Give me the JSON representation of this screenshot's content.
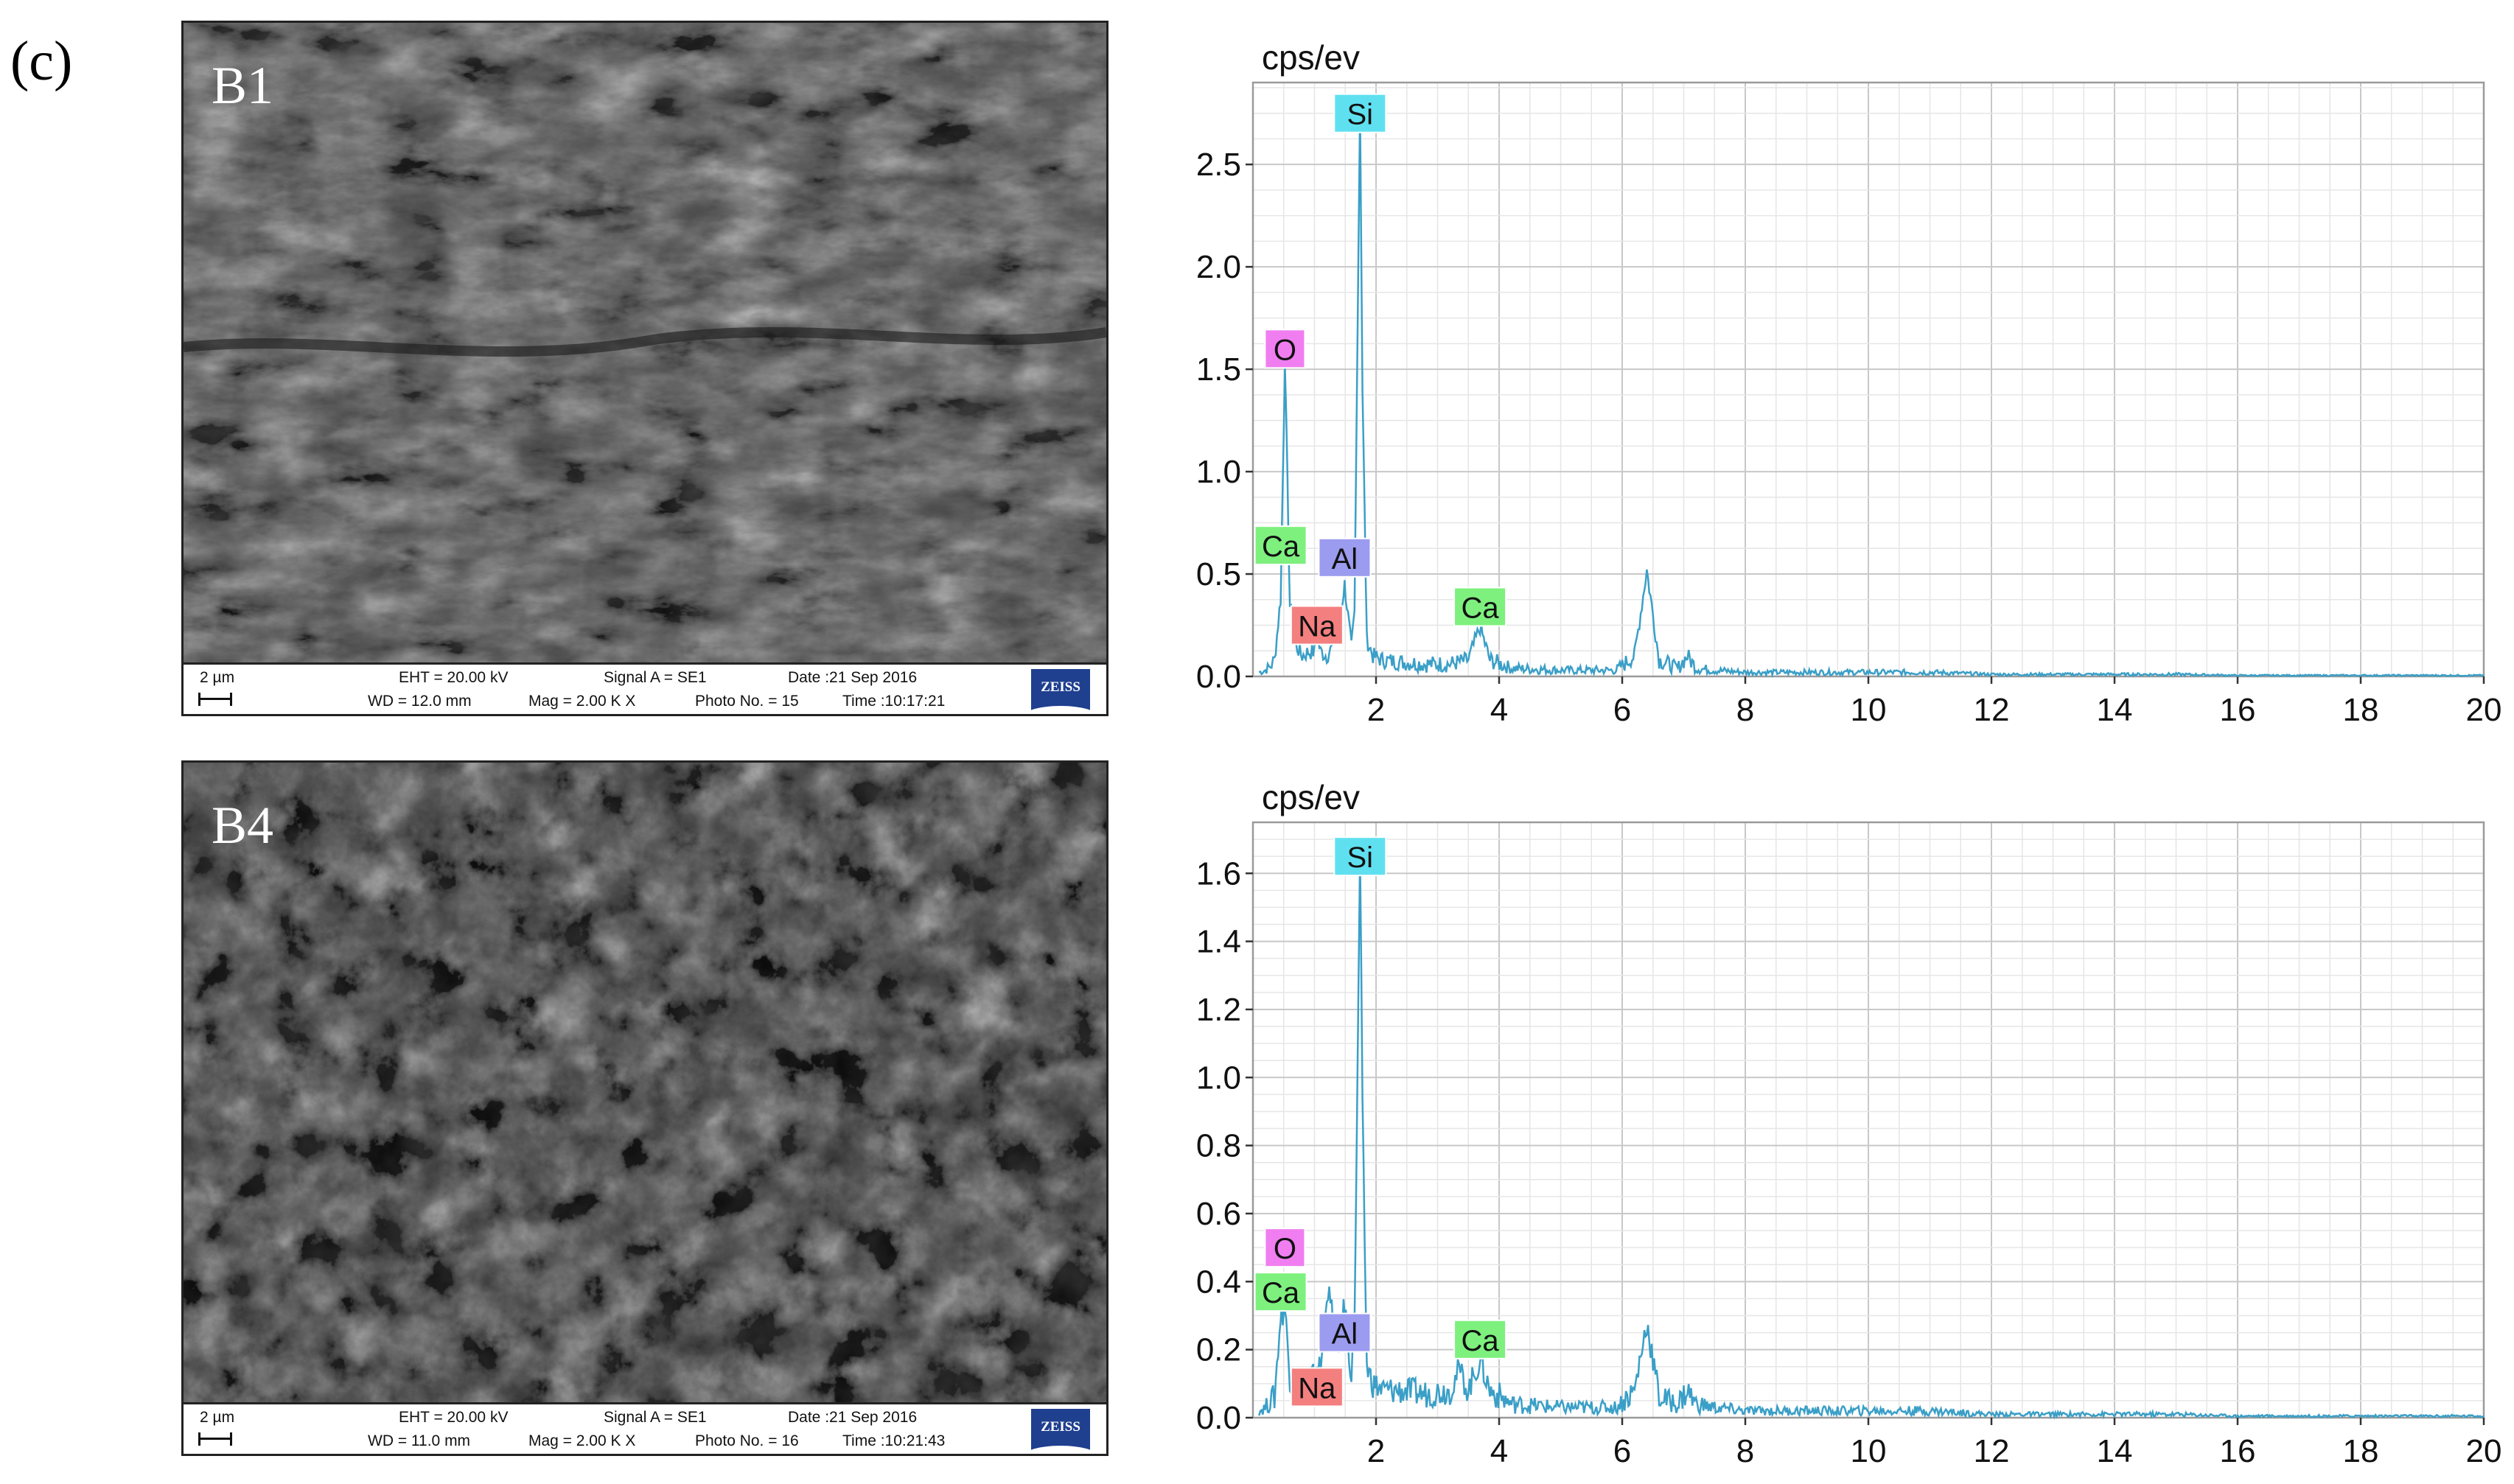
{
  "figure_label": "(c)",
  "panels": [
    {
      "sem": {
        "tag": "B1",
        "scale": "2 µm",
        "eht": "EHT = 20.00 kV",
        "wd": "WD = 12.0 mm",
        "signal": "Signal A = SE1",
        "mag": "Mag =  2.00 K X",
        "date": "Date :21 Sep 2016",
        "photo": "Photo No. = 15",
        "time": "Time :10:17:21",
        "logo": "ZEISS"
      }
    },
    {
      "sem": {
        "tag": "B4",
        "scale": "2 µm",
        "eht": "EHT = 20.00 kV",
        "wd": "WD = 11.0 mm",
        "signal": "Signal A = SE1",
        "mag": "Mag =  2.00 K X",
        "date": "Date :21 Sep 2016",
        "photo": "Photo No. = 16",
        "time": "Time :10:21:43",
        "logo": "ZEISS"
      }
    }
  ],
  "chart_data": [
    {
      "type": "line",
      "title": "",
      "ylabel": "cps/ev",
      "xlabel": "",
      "xlim": [
        0,
        20
      ],
      "ylim": [
        0,
        2.9
      ],
      "xticks": [
        2,
        4,
        6,
        8,
        10,
        12,
        14,
        16,
        18,
        20
      ],
      "yticks": [
        0.0,
        0.5,
        1.0,
        1.5,
        2.0,
        2.5
      ],
      "grid": true,
      "line_color": "#3a9fc7",
      "series": [
        {
          "x": [
            0.1,
            0.2,
            0.28,
            0.35,
            0.45,
            0.52,
            0.6,
            0.7,
            0.8,
            0.9,
            1.0,
            1.04,
            1.1,
            1.2,
            1.3,
            1.4,
            1.49,
            1.6,
            1.65,
            1.7,
            1.74,
            1.78,
            1.85,
            1.95,
            2.1,
            2.4,
            2.8,
            3.2,
            3.5,
            3.69,
            3.85,
            4.2,
            5.0,
            5.9,
            6.2,
            6.4,
            6.6,
            6.9,
            7.06,
            7.2,
            7.5,
            8.0,
            9.0,
            10.0,
            11.0,
            12.0,
            13.0,
            14.0,
            15.0,
            16.0,
            17.0,
            18.0,
            19.0,
            20.0
          ],
          "y": [
            0.02,
            0.03,
            0.05,
            0.08,
            0.38,
            1.55,
            0.35,
            0.15,
            0.1,
            0.12,
            0.12,
            0.2,
            0.12,
            0.1,
            0.15,
            0.25,
            0.45,
            0.14,
            0.3,
            1.7,
            2.78,
            1.4,
            0.18,
            0.1,
            0.08,
            0.07,
            0.06,
            0.06,
            0.08,
            0.24,
            0.08,
            0.04,
            0.03,
            0.03,
            0.1,
            0.52,
            0.08,
            0.04,
            0.1,
            0.04,
            0.03,
            0.02,
            0.02,
            0.02,
            0.02,
            0.01,
            0.01,
            0.01,
            0.01,
            0.005,
            0.005,
            0.005,
            0.005,
            0.005
          ]
        }
      ],
      "annotations": [
        {
          "text": "Si",
          "x": 1.74,
          "y": 2.75,
          "color": "#5fe0f0"
        },
        {
          "text": "O",
          "x": 0.52,
          "y": 1.6,
          "color": "#f07ef0"
        },
        {
          "text": "Ca",
          "x": 0.45,
          "y": 0.64,
          "color": "#7ef07e"
        },
        {
          "text": "Al",
          "x": 1.49,
          "y": 0.58,
          "color": "#9b9bef"
        },
        {
          "text": "Na",
          "x": 1.04,
          "y": 0.25,
          "color": "#f47f7f"
        },
        {
          "text": "Ca",
          "x": 3.69,
          "y": 0.34,
          "color": "#7ef07e"
        }
      ]
    },
    {
      "type": "line",
      "title": "",
      "ylabel": "cps/ev",
      "xlabel": "",
      "xlim": [
        0,
        20
      ],
      "ylim": [
        0,
        1.75
      ],
      "xticks": [
        2,
        4,
        6,
        8,
        10,
        12,
        14,
        16,
        18,
        20
      ],
      "yticks": [
        0.0,
        0.2,
        0.4,
        0.6,
        0.8,
        1.0,
        1.2,
        1.4,
        1.6
      ],
      "grid": true,
      "line_color": "#3a9fc7",
      "series": [
        {
          "x": [
            0.1,
            0.2,
            0.28,
            0.35,
            0.45,
            0.52,
            0.6,
            0.7,
            0.8,
            0.9,
            1.0,
            1.04,
            1.1,
            1.2,
            1.3,
            1.4,
            1.49,
            1.6,
            1.65,
            1.7,
            1.74,
            1.78,
            1.85,
            1.95,
            2.1,
            2.4,
            2.8,
            3.2,
            3.35,
            3.5,
            3.69,
            3.85,
            4.2,
            5.0,
            5.9,
            6.2,
            6.4,
            6.6,
            6.9,
            7.06,
            7.2,
            7.5,
            8.0,
            9.0,
            10.0,
            11.0,
            12.0,
            13.0,
            14.0,
            15.0,
            16.0,
            17.0,
            18.0,
            19.0,
            20.0
          ],
          "y": [
            0.02,
            0.03,
            0.05,
            0.06,
            0.3,
            0.32,
            0.12,
            0.08,
            0.1,
            0.12,
            0.12,
            0.16,
            0.14,
            0.38,
            0.3,
            0.2,
            0.34,
            0.12,
            0.3,
            1.0,
            1.66,
            0.9,
            0.15,
            0.1,
            0.08,
            0.08,
            0.07,
            0.08,
            0.14,
            0.08,
            0.17,
            0.08,
            0.04,
            0.03,
            0.03,
            0.08,
            0.28,
            0.06,
            0.04,
            0.08,
            0.04,
            0.03,
            0.02,
            0.02,
            0.02,
            0.02,
            0.01,
            0.01,
            0.01,
            0.01,
            0.005,
            0.005,
            0.005,
            0.005,
            0.005
          ]
        }
      ],
      "annotations": [
        {
          "text": "Si",
          "x": 1.74,
          "y": 1.65,
          "color": "#5fe0f0"
        },
        {
          "text": "O",
          "x": 0.52,
          "y": 0.5,
          "color": "#f07ef0"
        },
        {
          "text": "Ca",
          "x": 0.45,
          "y": 0.37,
          "color": "#7ef07e"
        },
        {
          "text": "Al",
          "x": 1.49,
          "y": 0.25,
          "color": "#9b9bef"
        },
        {
          "text": "Na",
          "x": 1.04,
          "y": 0.09,
          "color": "#f47f7f"
        },
        {
          "text": "Ca",
          "x": 3.69,
          "y": 0.23,
          "color": "#7ef07e"
        }
      ]
    }
  ]
}
